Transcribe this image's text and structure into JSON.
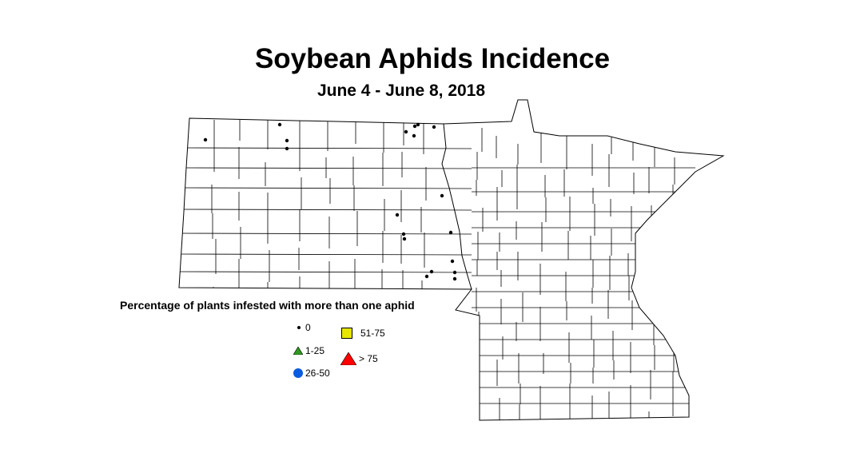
{
  "title": "Soybean Aphids Incidence",
  "subtitle": "June 4 - June 8, 2018",
  "legend": {
    "title": "Percentage of plants infested with more than one aphid",
    "items": [
      {
        "label": "0",
        "symbol": "small-dot",
        "color": "#000000"
      },
      {
        "label": "1-25",
        "symbol": "triangle",
        "color": "#2e9b1e"
      },
      {
        "label": "26-50",
        "symbol": "circle",
        "color": "#0a5be0"
      },
      {
        "label": "51-75",
        "symbol": "square",
        "color": "#e6e600"
      },
      {
        "label": "> 75",
        "symbol": "triangle",
        "color": "#ff0000"
      }
    ]
  },
  "sites": [
    {
      "category": "0"
    },
    {
      "category": "0"
    },
    {
      "category": "0"
    },
    {
      "category": "0"
    },
    {
      "category": "0"
    },
    {
      "category": "0"
    },
    {
      "category": "0"
    },
    {
      "category": "0"
    },
    {
      "category": "0"
    },
    {
      "category": "0"
    },
    {
      "category": "0"
    },
    {
      "category": "0"
    },
    {
      "category": "0"
    },
    {
      "category": "0"
    },
    {
      "category": "0"
    },
    {
      "category": "0"
    },
    {
      "category": "0"
    },
    {
      "category": "0"
    },
    {
      "category": "0"
    }
  ]
}
